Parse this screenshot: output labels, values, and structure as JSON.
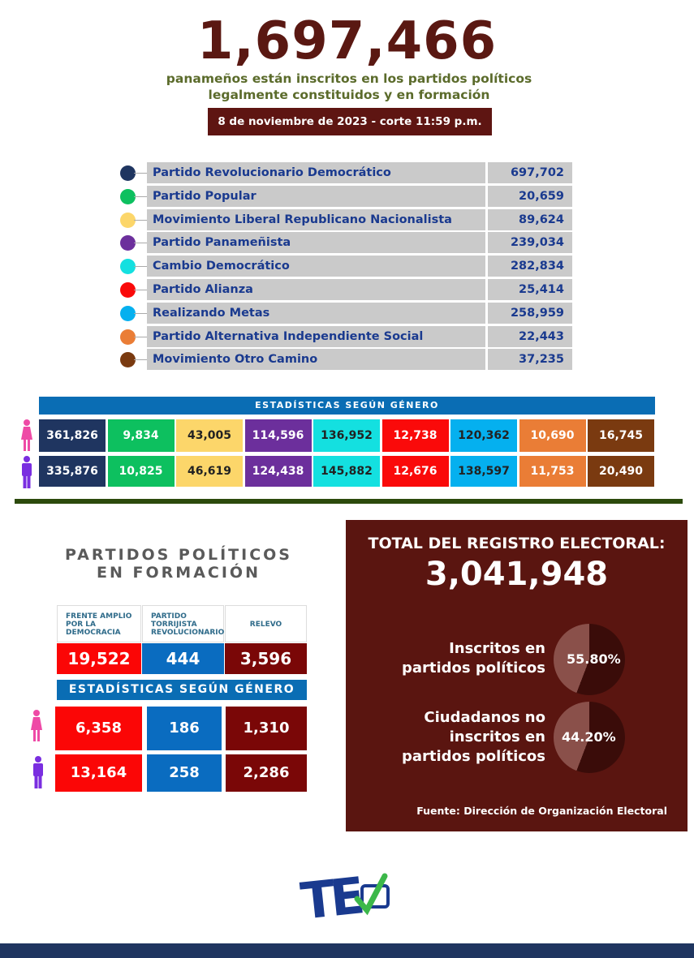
{
  "header": {
    "total": "1,697,466",
    "line1": "panameños están inscritos en los partidos políticos",
    "line2": "legalmente constituidos y en formación",
    "date": "8 de noviembre de 2023 - corte 11:59 p.m."
  },
  "parties": [
    {
      "name": "Partido Revolucionario Democrático",
      "value": "697,702",
      "color": "#1f3560",
      "female": "361,826",
      "male": "335,876",
      "text": "#fff"
    },
    {
      "name": "Partido Popular",
      "value": "20,659",
      "color": "#0dc05f",
      "female": "9,834",
      "male": "10,825",
      "text": "#fff"
    },
    {
      "name": "Movimiento Liberal Republicano Nacionalista",
      "value": "89,624",
      "color": "#fcd66a",
      "female": "43,005",
      "male": "46,619",
      "text": "#222"
    },
    {
      "name": "Partido Panameñista",
      "value": "239,034",
      "color": "#6c2f9c",
      "female": "114,596",
      "male": "124,438",
      "text": "#fff"
    },
    {
      "name": "Cambio Democrático",
      "value": "282,834",
      "color": "#14e0e0",
      "female": "136,952",
      "male": "145,882",
      "text": "#222"
    },
    {
      "name": "Partido Alianza",
      "value": "25,414",
      "color": "#fa0a0a",
      "female": "12,738",
      "male": "12,676",
      "text": "#fff"
    },
    {
      "name": "Realizando Metas",
      "value": "258,959",
      "color": "#05b0ef",
      "female": "120,362",
      "male": "138,597",
      "text": "#222"
    },
    {
      "name": "Partido Alternativa Independiente Social",
      "value": "22,443",
      "color": "#ea7d36",
      "female": "10,690",
      "male": "11,753",
      "text": "#fff"
    },
    {
      "name": "Movimiento Otro Camino",
      "value": "37,235",
      "color": "#7a3a10",
      "female": "16,745",
      "male": "20,490",
      "text": "#fff"
    }
  ],
  "gender_title": "ESTADÍSTICAS SEGÚN GÉNERO",
  "icons": {
    "female": "female-figure-icon",
    "male": "male-figure-icon",
    "female_color": "#ee4aa6",
    "male_color": "#7a2ee0"
  },
  "formation": {
    "title1": "PARTIDOS POLÍTICOS",
    "title2": "EN FORMACIÓN",
    "gender_title": "ESTADÍSTICAS SEGÚN GÉNERO",
    "parties": [
      {
        "name": "FRENTE AMPLIO POR LA DEMOCRACIA",
        "value": "19,522",
        "female": "6,358",
        "male": "13,164",
        "color": "#fb0606"
      },
      {
        "name": "PARTIDO TORRIJISTA REVOLUCIONARIO",
        "value": "444",
        "female": "186",
        "male": "258",
        "color": "#0a6cc0"
      },
      {
        "name": "RELEVO",
        "value": "3,596",
        "female": "1,310",
        "male": "2,286",
        "color": "#7a0707"
      }
    ]
  },
  "registry": {
    "title": "TOTAL DEL REGISTRO ELECTORAL:",
    "total": "3,041,948",
    "items": [
      {
        "label1": "Inscritos en",
        "label2": "partidos políticos",
        "label3": "",
        "percent": "55.80%",
        "dark_share": 55.8
      },
      {
        "label1": "Ciudadanos no",
        "label2": "inscritos en",
        "label3": "partidos políticos",
        "percent": "44.20%",
        "dark_share": 55.8
      }
    ],
    "source": "Fuente: Dirección de Organización Electoral"
  },
  "logo": {
    "text": "TE"
  }
}
